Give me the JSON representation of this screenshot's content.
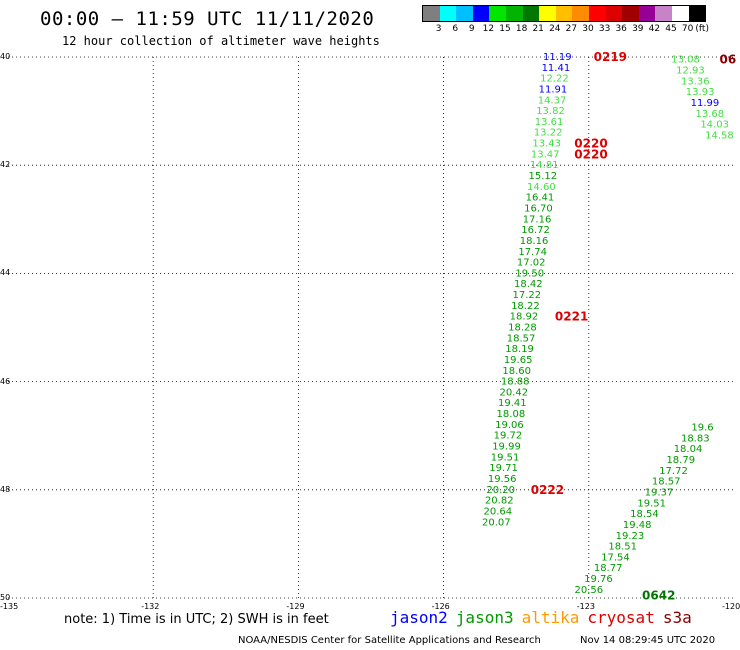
{
  "header": {
    "title": "00:00 – 11:59 UTC 11/11/2020",
    "subtitle": "12 hour collection of altimeter wave heights"
  },
  "legend": {
    "unit": "(ft)",
    "bins": [
      {
        "label": "3",
        "color": "#7f7f7f"
      },
      {
        "label": "6",
        "color": "#00ffff"
      },
      {
        "label": "9",
        "color": "#00bfff"
      },
      {
        "label": "12",
        "color": "#0000ff"
      },
      {
        "label": "15",
        "color": "#00e600"
      },
      {
        "label": "18",
        "color": "#00b400"
      },
      {
        "label": "21",
        "color": "#007800"
      },
      {
        "label": "24",
        "color": "#ffff00"
      },
      {
        "label": "27",
        "color": "#ffbe00"
      },
      {
        "label": "30",
        "color": "#ff8c00"
      },
      {
        "label": "33",
        "color": "#ff0000"
      },
      {
        "label": "36",
        "color": "#dc0000"
      },
      {
        "label": "39",
        "color": "#a00000"
      },
      {
        "label": "42",
        "color": "#960096"
      },
      {
        "label": "45",
        "color": "#c882c8"
      },
      {
        "label": "70",
        "color": "#ffffff"
      },
      {
        "label": "",
        "color": "#000000"
      }
    ]
  },
  "map": {
    "lon_labels": [
      "-135",
      "-132",
      "-129",
      "-126",
      "-123",
      "-120"
    ],
    "lat_labels": [
      "40",
      "42",
      "44",
      "46",
      "48",
      "50"
    ]
  },
  "chart_data": {
    "type": "scatter",
    "title": "00:00 – 11:59 UTC 11/11/2020",
    "subtitle": "12 hour collection of altimeter wave heights",
    "xlim": [
      -135,
      -120
    ],
    "ylim": [
      40,
      50
    ],
    "points": [
      {
        "v": "11.19",
        "c": "#0000ff",
        "lon": -123.65,
        "lat": 40.0
      },
      {
        "v": "11.41",
        "c": "#0000ff",
        "lon": -123.68,
        "lat": 40.2
      },
      {
        "v": "12.22",
        "c": "#44dd44",
        "lon": -123.71,
        "lat": 40.4
      },
      {
        "v": "11.91",
        "c": "#0000ff",
        "lon": -123.74,
        "lat": 40.6
      },
      {
        "v": "14.37",
        "c": "#44dd44",
        "lon": -123.76,
        "lat": 40.8
      },
      {
        "v": "13.82",
        "c": "#44dd44",
        "lon": -123.79,
        "lat": 41.0
      },
      {
        "v": "13.61",
        "c": "#44dd44",
        "lon": -123.82,
        "lat": 41.2
      },
      {
        "v": "13.22",
        "c": "#44dd44",
        "lon": -123.84,
        "lat": 41.4
      },
      {
        "v": "13.43",
        "c": "#44dd44",
        "lon": -123.87,
        "lat": 41.6
      },
      {
        "v": "13.47",
        "c": "#44dd44",
        "lon": -123.9,
        "lat": 41.8
      },
      {
        "v": "14.81",
        "c": "#44dd44",
        "lon": -123.92,
        "lat": 42.0
      },
      {
        "v": "15.12",
        "c": "#009900",
        "lon": -123.95,
        "lat": 42.2
      },
      {
        "v": "14.60",
        "c": "#44dd44",
        "lon": -123.98,
        "lat": 42.4
      },
      {
        "v": "16.41",
        "c": "#009900",
        "lon": -124.01,
        "lat": 42.6
      },
      {
        "v": "16.70",
        "c": "#009900",
        "lon": -124.04,
        "lat": 42.8
      },
      {
        "v": "17.16",
        "c": "#009900",
        "lon": -124.07,
        "lat": 43.0
      },
      {
        "v": "16.72",
        "c": "#009900",
        "lon": -124.1,
        "lat": 43.2
      },
      {
        "v": "18.16",
        "c": "#009900",
        "lon": -124.13,
        "lat": 43.4
      },
      {
        "v": "17.74",
        "c": "#009900",
        "lon": -124.16,
        "lat": 43.6
      },
      {
        "v": "17.02",
        "c": "#009900",
        "lon": -124.19,
        "lat": 43.8
      },
      {
        "v": "19.50",
        "c": "#009900",
        "lon": -124.22,
        "lat": 44.0
      },
      {
        "v": "18.42",
        "c": "#009900",
        "lon": -124.25,
        "lat": 44.2
      },
      {
        "v": "17.22",
        "c": "#009900",
        "lon": -124.28,
        "lat": 44.4
      },
      {
        "v": "18.22",
        "c": "#009900",
        "lon": -124.31,
        "lat": 44.6
      },
      {
        "v": "18.92",
        "c": "#009900",
        "lon": -124.34,
        "lat": 44.8
      },
      {
        "v": "18.28",
        "c": "#009900",
        "lon": -124.37,
        "lat": 45.0
      },
      {
        "v": "18.57",
        "c": "#009900",
        "lon": -124.4,
        "lat": 45.2
      },
      {
        "v": "18.19",
        "c": "#009900",
        "lon": -124.43,
        "lat": 45.4
      },
      {
        "v": "19.65",
        "c": "#009900",
        "lon": -124.46,
        "lat": 45.6
      },
      {
        "v": "18.60",
        "c": "#009900",
        "lon": -124.49,
        "lat": 45.8
      },
      {
        "v": "18.88",
        "c": "#009900",
        "lon": -124.52,
        "lat": 46.0
      },
      {
        "v": "20.42",
        "c": "#009900",
        "lon": -124.55,
        "lat": 46.2
      },
      {
        "v": "19.41",
        "c": "#009900",
        "lon": -124.58,
        "lat": 46.4
      },
      {
        "v": "18.08",
        "c": "#009900",
        "lon": -124.61,
        "lat": 46.6
      },
      {
        "v": "19.06",
        "c": "#009900",
        "lon": -124.64,
        "lat": 46.8
      },
      {
        "v": "19.72",
        "c": "#009900",
        "lon": -124.67,
        "lat": 47.0
      },
      {
        "v": "19.99",
        "c": "#009900",
        "lon": -124.7,
        "lat": 47.2
      },
      {
        "v": "19.51",
        "c": "#009900",
        "lon": -124.73,
        "lat": 47.4
      },
      {
        "v": "19.71",
        "c": "#009900",
        "lon": -124.76,
        "lat": 47.6
      },
      {
        "v": "19.56",
        "c": "#009900",
        "lon": -124.79,
        "lat": 47.8
      },
      {
        "v": "20.20",
        "c": "#009900",
        "lon": -124.82,
        "lat": 48.0
      },
      {
        "v": "20.82",
        "c": "#009900",
        "lon": -124.85,
        "lat": 48.2
      },
      {
        "v": "20.64",
        "c": "#009900",
        "lon": -124.88,
        "lat": 48.4
      },
      {
        "v": "20.07",
        "c": "#009900",
        "lon": -124.91,
        "lat": 48.6
      },
      {
        "v": "13.08",
        "c": "#44dd44",
        "lon": -121.0,
        "lat": 40.05
      },
      {
        "v": "12.93",
        "c": "#44dd44",
        "lon": -120.9,
        "lat": 40.25
      },
      {
        "v": "13.36",
        "c": "#44dd44",
        "lon": -120.8,
        "lat": 40.45
      },
      {
        "v": "13.93",
        "c": "#44dd44",
        "lon": -120.7,
        "lat": 40.65
      },
      {
        "v": "11.99",
        "c": "#0000ff",
        "lon": -120.6,
        "lat": 40.85
      },
      {
        "v": "13.68",
        "c": "#44dd44",
        "lon": -120.5,
        "lat": 41.05
      },
      {
        "v": "14.03",
        "c": "#44dd44",
        "lon": -120.4,
        "lat": 41.25
      },
      {
        "v": "14.58",
        "c": "#44dd44",
        "lon": -120.3,
        "lat": 41.45
      },
      {
        "v": "20.56",
        "c": "#009900",
        "lon": -123.0,
        "lat": 49.85
      },
      {
        "v": "19.76",
        "c": "#009900",
        "lon": -122.8,
        "lat": 49.65
      },
      {
        "v": "18.77",
        "c": "#009900",
        "lon": -122.6,
        "lat": 49.45
      },
      {
        "v": "17.54",
        "c": "#009900",
        "lon": -122.45,
        "lat": 49.25
      },
      {
        "v": "18.51",
        "c": "#009900",
        "lon": -122.3,
        "lat": 49.05
      },
      {
        "v": "19.23",
        "c": "#009900",
        "lon": -122.15,
        "lat": 48.85
      },
      {
        "v": "19.48",
        "c": "#009900",
        "lon": -122.0,
        "lat": 48.65
      },
      {
        "v": "18.54",
        "c": "#009900",
        "lon": -121.85,
        "lat": 48.45
      },
      {
        "v": "19.51",
        "c": "#009900",
        "lon": -121.7,
        "lat": 48.25
      },
      {
        "v": "19.37",
        "c": "#009900",
        "lon": -121.55,
        "lat": 48.05
      },
      {
        "v": "18.57",
        "c": "#009900",
        "lon": -121.4,
        "lat": 47.85
      },
      {
        "v": "17.72",
        "c": "#009900",
        "lon": -121.25,
        "lat": 47.65
      },
      {
        "v": "18.79",
        "c": "#009900",
        "lon": -121.1,
        "lat": 47.45
      },
      {
        "v": "18.04",
        "c": "#009900",
        "lon": -120.95,
        "lat": 47.25
      },
      {
        "v": "18.83",
        "c": "#009900",
        "lon": -120.8,
        "lat": 47.05
      },
      {
        "v": "19.6",
        "c": "#009900",
        "lon": -120.65,
        "lat": 46.85
      }
    ],
    "time_labels": [
      {
        "v": "0219",
        "c": "#dd0000",
        "lon": -122.9,
        "lat": 40.0
      },
      {
        "v": "0220",
        "c": "#dd0000",
        "lon": -123.3,
        "lat": 41.6
      },
      {
        "v": "0220",
        "c": "#dd0000",
        "lon": -123.3,
        "lat": 41.8
      },
      {
        "v": "0221",
        "c": "#dd0000",
        "lon": -123.7,
        "lat": 44.8
      },
      {
        "v": "0222",
        "c": "#dd0000",
        "lon": -124.2,
        "lat": 48.0
      },
      {
        "v": "0642",
        "c": "#007800",
        "lon": -121.9,
        "lat": 49.95
      },
      {
        "v": "06",
        "c": "#880000",
        "lon": -120.3,
        "lat": 40.05
      }
    ]
  },
  "note": "note:  1) Time is in UTC;  2) SWH is in feet",
  "satellites": [
    {
      "name": "jason2",
      "color": "#0000ff"
    },
    {
      "name": "jason3",
      "color": "#009900"
    },
    {
      "name": "altika",
      "color": "#ff9900"
    },
    {
      "name": "cryosat",
      "color": "#dd0000"
    },
    {
      "name": "s3a",
      "color": "#880000"
    }
  ],
  "footer": {
    "credit": "NOAA/NESDIS Center for Satellite Applications and Research",
    "timestamp": "Nov 14 08:29:45 UTC 2020"
  }
}
